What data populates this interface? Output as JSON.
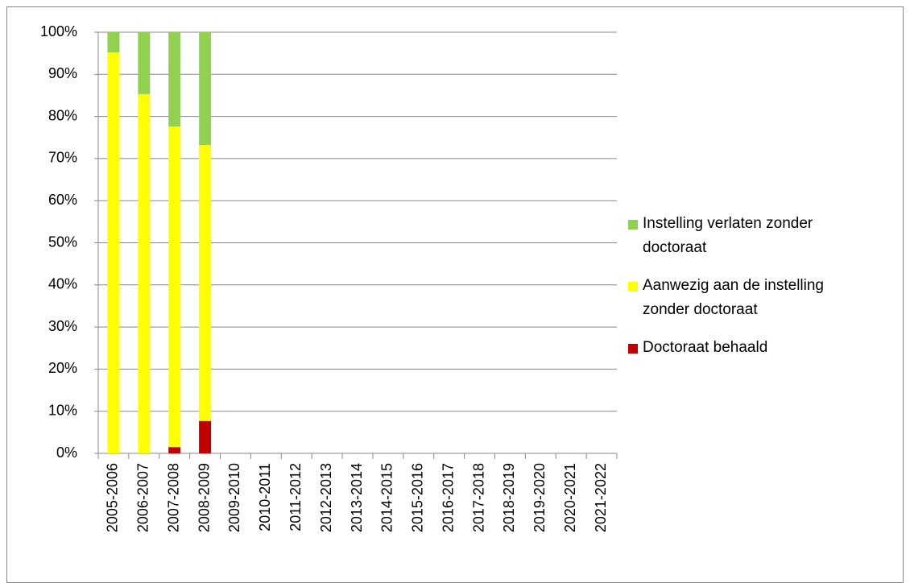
{
  "chart_data": {
    "type": "bar",
    "stacked": true,
    "categories": [
      "2005-2006",
      "2006-2007",
      "2007-2008",
      "2008-2009",
      "2009-2010",
      "2010-2011",
      "2011-2012",
      "2012-2013",
      "2013-2014",
      "2014-2015",
      "2015-2016",
      "2016-2017",
      "2017-2018",
      "2018-2019",
      "2019-2020",
      "2020-2021",
      "2021-2022"
    ],
    "series": [
      {
        "name": "Doctoraat behaald",
        "color": "#c00000",
        "values": [
          0,
          0,
          1.5,
          7.7,
          null,
          null,
          null,
          null,
          null,
          null,
          null,
          null,
          null,
          null,
          null,
          null,
          null
        ]
      },
      {
        "name": "Aanwezig aan de instelling zonder doctoraat",
        "color": "#ffff00",
        "values": [
          95.2,
          85.3,
          76.1,
          65.5,
          null,
          null,
          null,
          null,
          null,
          null,
          null,
          null,
          null,
          null,
          null,
          null,
          null
        ]
      },
      {
        "name": "Instelling verlaten zonder doctoraat",
        "color": "#92d050",
        "values": [
          4.8,
          14.7,
          22.4,
          26.8,
          null,
          null,
          null,
          null,
          null,
          null,
          null,
          null,
          null,
          null,
          null,
          null,
          null
        ]
      }
    ],
    "ylim": [
      0,
      100
    ],
    "yticks": [
      {
        "value": 0,
        "label": "0%"
      },
      {
        "value": 10,
        "label": "10%"
      },
      {
        "value": 20,
        "label": "20%"
      },
      {
        "value": 30,
        "label": "30%"
      },
      {
        "value": 40,
        "label": "40%"
      },
      {
        "value": 50,
        "label": "50%"
      },
      {
        "value": 60,
        "label": "60%"
      },
      {
        "value": 70,
        "label": "70%"
      },
      {
        "value": 80,
        "label": "80%"
      },
      {
        "value": 90,
        "label": "90%"
      },
      {
        "value": 100,
        "label": "100%"
      }
    ],
    "grid": true,
    "legend": "right"
  }
}
